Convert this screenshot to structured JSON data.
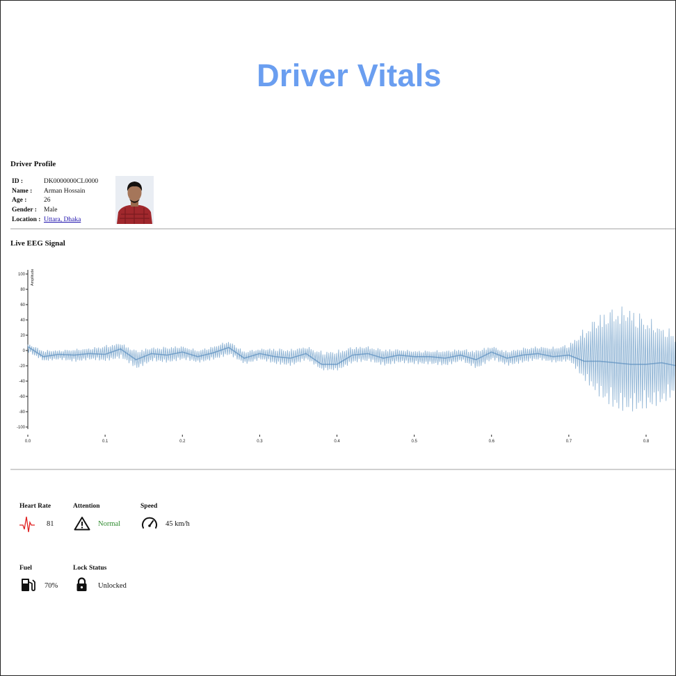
{
  "page": {
    "title": "Driver Vitals"
  },
  "profile": {
    "heading": "Driver Profile",
    "rows": [
      {
        "key": "ID :",
        "value": "DK0000000CL0000"
      },
      {
        "key": "Name :",
        "value": "Arman Hossain"
      },
      {
        "key": "Age :",
        "value": "26"
      },
      {
        "key": "Gender :",
        "value": "Male"
      },
      {
        "key": "Location :",
        "value": "Uttara, Dhaka"
      }
    ]
  },
  "eeg": {
    "heading": "Live EEG Signal",
    "chart_data": {
      "type": "line",
      "title": "",
      "xlabel": "",
      "ylabel": "Amplitude",
      "xlim": [
        0.0,
        0.84
      ],
      "ylim": [
        -100,
        100
      ],
      "xticks": [
        "0.0",
        "0.1",
        "0.2",
        "0.3",
        "0.4",
        "0.5",
        "0.6",
        "0.7",
        "0.8"
      ],
      "yticks": [
        "100",
        "80",
        "60",
        "40",
        "20",
        "0",
        "-20",
        "-40",
        "-60",
        "-80",
        "-100"
      ],
      "color": "#7aa6cc",
      "x": [
        0.0,
        0.02,
        0.04,
        0.06,
        0.08,
        0.1,
        0.12,
        0.14,
        0.16,
        0.18,
        0.2,
        0.22,
        0.24,
        0.26,
        0.28,
        0.3,
        0.32,
        0.34,
        0.36,
        0.38,
        0.4,
        0.42,
        0.44,
        0.46,
        0.48,
        0.5,
        0.52,
        0.54,
        0.56,
        0.58,
        0.6,
        0.62,
        0.64,
        0.66,
        0.68,
        0.7,
        0.72,
        0.74,
        0.76,
        0.78,
        0.8,
        0.82,
        0.84
      ],
      "series": [
        {
          "values": [
            5,
            -8,
            -5,
            -6,
            -4,
            -5,
            2,
            -12,
            -4,
            -6,
            -2,
            -8,
            -3,
            4,
            -10,
            -4,
            -8,
            -10,
            -4,
            -18,
            -18,
            -6,
            -4,
            -10,
            -6,
            -8,
            -8,
            -10,
            -6,
            -12,
            -2,
            -10,
            -6,
            -4,
            -8,
            -6,
            -14,
            -14,
            -16,
            -18,
            -18,
            -16,
            -20
          ]
        },
        {
          "values": [
            10,
            3,
            2,
            4,
            5,
            10,
            12,
            4,
            6,
            8,
            8,
            3,
            8,
            15,
            2,
            4,
            6,
            5,
            8,
            4,
            5,
            8,
            8,
            5,
            4,
            2,
            2,
            3,
            4,
            4,
            8,
            2,
            6,
            8,
            8,
            12,
            40,
            65,
            76,
            76,
            60,
            45,
            35
          ]
        },
        {
          "values": [
            -3,
            -14,
            -12,
            -15,
            -12,
            -14,
            -10,
            -24,
            -14,
            -16,
            -12,
            -16,
            -12,
            -6,
            -18,
            -12,
            -18,
            -20,
            -12,
            -26,
            -26,
            -16,
            -14,
            -20,
            -16,
            -18,
            -18,
            -20,
            -14,
            -24,
            -12,
            -20,
            -16,
            -12,
            -16,
            -14,
            -40,
            -62,
            -78,
            -80,
            -76,
            -70,
            -55
          ]
        }
      ]
    }
  },
  "metrics": {
    "heart_rate": {
      "label": "Heart Rate",
      "value": "81",
      "icon": "heartbeat-icon",
      "color": "#e02020"
    },
    "attention": {
      "label": "Attention",
      "value": "Normal",
      "icon": "warning-triangle-icon",
      "color": "#2e8b2e"
    },
    "speed": {
      "label": "Speed",
      "value": "45 km/h",
      "icon": "speedometer-icon"
    },
    "fuel": {
      "label": "Fuel",
      "value": "70%",
      "icon": "fuel-pump-icon"
    },
    "lock": {
      "label": "Lock Status",
      "value": "Unlocked",
      "icon": "lock-icon"
    }
  }
}
